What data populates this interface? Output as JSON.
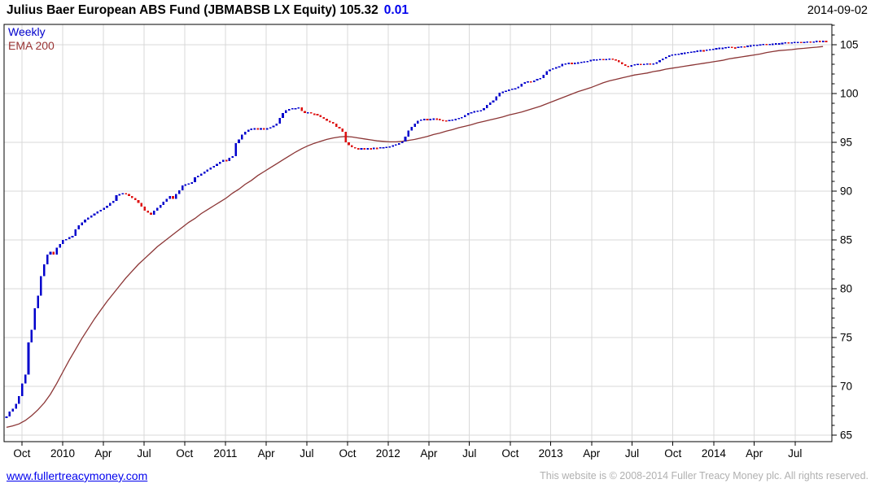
{
  "header": {
    "title": "Julius Baer European ABS Fund (JBMABSB LX Equity) 105.32",
    "change": "0.01",
    "date": "2014-09-02"
  },
  "legend": [
    {
      "label": "Weekly",
      "color": "#0000cc"
    },
    {
      "label": "EMA 200",
      "color": "#993333"
    }
  ],
  "footer": {
    "link": "www.fullertreacymoney.com",
    "copyright": "This website is © 2008-2014 Fuller Treacy Money plc. All rights reserved."
  },
  "chart_data": {
    "type": "line",
    "title": "Julius Baer European ABS Fund (JBMABSB LX Equity)",
    "last_price": 105.32,
    "change": 0.01,
    "period": "weekly",
    "date_range": {
      "start": "2009-09",
      "end": "2014-09-02"
    },
    "grid": true,
    "colors": {
      "up": "#0000cc",
      "down": "#dd1111",
      "ema": "#8b3535",
      "grid": "#d9d9d9",
      "axis": "#000000"
    },
    "x_axis": {
      "labels": [
        "Oct",
        "2010",
        "Apr",
        "Jul",
        "Oct",
        "2011",
        "Apr",
        "Jul",
        "Oct",
        "2012",
        "Apr",
        "Jul",
        "Oct",
        "2013",
        "Apr",
        "Jul",
        "Oct",
        "2014",
        "Apr",
        "Jul"
      ],
      "tick_positions": [
        4.9,
        17.9,
        30.8,
        43.8,
        56.7,
        69.7,
        82.7,
        95.6,
        108.6,
        121.5,
        134.5,
        147.4,
        160.4,
        173.3,
        186.3,
        199.2,
        212.2,
        225.2,
        238.1,
        251.1
      ],
      "unit": "week-index"
    },
    "y_axis": {
      "min": 65,
      "max": 105,
      "major_step": 5,
      "minor_step": 1,
      "side": "right",
      "major_ticks": [
        65,
        70,
        75,
        80,
        85,
        90,
        95,
        100,
        105
      ]
    },
    "total_weeks": 261,
    "series": [
      {
        "name": "Weekly",
        "style": "weekly-bars",
        "weekly_values": [
          66.9,
          67.4,
          67.7,
          68.2,
          69.0,
          70.3,
          71.2,
          74.5,
          75.8,
          78.0,
          79.3,
          81.3,
          82.5,
          83.5,
          83.8,
          83.5,
          84.2,
          84.6,
          85.0,
          85.1,
          85.3,
          85.4,
          86.1,
          86.5,
          86.8,
          87.1,
          87.3,
          87.5,
          87.7,
          87.9,
          88.1,
          88.3,
          88.5,
          88.8,
          89.0,
          89.6,
          89.7,
          89.8,
          89.7,
          89.5,
          89.3,
          89.1,
          88.8,
          88.4,
          88.0,
          87.8,
          87.6,
          88.0,
          88.3,
          88.6,
          88.9,
          89.2,
          89.5,
          89.2,
          89.7,
          90.1,
          90.6,
          90.7,
          90.8,
          90.9,
          91.4,
          91.6,
          91.8,
          92.0,
          92.2,
          92.4,
          92.6,
          92.8,
          93.0,
          93.2,
          93.1,
          93.4,
          93.6,
          94.9,
          95.3,
          95.8,
          96.1,
          96.3,
          96.4,
          96.45,
          96.35,
          96.45,
          96.35,
          96.45,
          96.55,
          96.7,
          96.9,
          97.5,
          98.0,
          98.3,
          98.4,
          98.5,
          98.5,
          98.6,
          98.2,
          98.0,
          98.1,
          97.95,
          97.9,
          97.8,
          97.6,
          97.4,
          97.2,
          97.1,
          96.9,
          96.6,
          96.4,
          96.1,
          95.0,
          94.7,
          94.5,
          94.4,
          94.3,
          94.4,
          94.3,
          94.4,
          94.35,
          94.45,
          94.4,
          94.5,
          94.5,
          94.55,
          94.6,
          94.7,
          94.8,
          94.9,
          95.1,
          95.6,
          96.2,
          96.6,
          96.9,
          97.2,
          97.35,
          97.4,
          97.35,
          97.4,
          97.45,
          97.4,
          97.3,
          97.25,
          97.2,
          97.3,
          97.35,
          97.4,
          97.5,
          97.6,
          97.8,
          98.0,
          98.1,
          98.2,
          98.25,
          98.3,
          98.5,
          98.85,
          99.1,
          99.3,
          99.7,
          100.1,
          100.2,
          100.3,
          100.4,
          100.5,
          100.55,
          100.7,
          101.0,
          101.15,
          101.25,
          101.15,
          101.35,
          101.5,
          101.6,
          101.9,
          102.3,
          102.45,
          102.6,
          102.7,
          102.8,
          103.05,
          103.1,
          103.15,
          103.05,
          103.15,
          103.2,
          103.25,
          103.3,
          103.35,
          103.45,
          103.5,
          103.5,
          103.55,
          103.5,
          103.55,
          103.6,
          103.5,
          103.4,
          103.2,
          103.0,
          102.85,
          102.8,
          102.9,
          103.0,
          103.05,
          103.0,
          103.05,
          103.1,
          103.05,
          103.1,
          103.2,
          103.4,
          103.6,
          103.75,
          103.9,
          104.0,
          104.05,
          104.1,
          104.15,
          104.2,
          104.25,
          104.3,
          104.35,
          104.4,
          104.45,
          104.38,
          104.5,
          104.55,
          104.6,
          104.65,
          104.7,
          104.7,
          104.75,
          104.8,
          104.73,
          104.7,
          104.8,
          104.85,
          104.78,
          104.9,
          104.95,
          105.0,
          105.0,
          105.05,
          105.1,
          105.04,
          105.1,
          105.12,
          105.15,
          105.15,
          105.2,
          105.25,
          105.18,
          105.25,
          105.3,
          105.3,
          105.24,
          105.3,
          105.35,
          105.28,
          105.35,
          105.4,
          105.35,
          105.4,
          105.32
        ]
      },
      {
        "name": "EMA 200",
        "style": "line",
        "week_step": 2,
        "values": [
          65.8,
          65.95,
          66.15,
          66.5,
          67.0,
          67.6,
          68.3,
          69.2,
          70.3,
          71.5,
          72.7,
          73.8,
          74.9,
          75.9,
          76.9,
          77.8,
          78.7,
          79.5,
          80.3,
          81.1,
          81.8,
          82.5,
          83.1,
          83.7,
          84.3,
          84.8,
          85.3,
          85.8,
          86.3,
          86.8,
          87.2,
          87.7,
          88.1,
          88.5,
          88.9,
          89.3,
          89.8,
          90.2,
          90.7,
          91.1,
          91.6,
          92.0,
          92.4,
          92.8,
          93.2,
          93.6,
          94.0,
          94.35,
          94.65,
          94.9,
          95.1,
          95.3,
          95.45,
          95.55,
          95.6,
          95.55,
          95.45,
          95.35,
          95.25,
          95.15,
          95.1,
          95.05,
          95.05,
          95.1,
          95.2,
          95.3,
          95.45,
          95.6,
          95.8,
          95.95,
          96.15,
          96.3,
          96.5,
          96.65,
          96.8,
          97.0,
          97.15,
          97.3,
          97.45,
          97.6,
          97.8,
          97.95,
          98.1,
          98.3,
          98.5,
          98.7,
          98.95,
          99.2,
          99.45,
          99.7,
          99.95,
          100.2,
          100.4,
          100.6,
          100.85,
          101.1,
          101.3,
          101.45,
          101.6,
          101.75,
          101.9,
          102.0,
          102.1,
          102.25,
          102.35,
          102.5,
          102.6,
          102.7,
          102.8,
          102.9,
          103.0,
          103.1,
          103.2,
          103.3,
          103.4,
          103.55,
          103.65,
          103.75,
          103.85,
          103.95,
          104.05,
          104.2,
          104.3,
          104.4,
          104.45,
          104.5,
          104.58,
          104.63,
          104.7,
          104.75,
          104.82
        ]
      }
    ]
  }
}
